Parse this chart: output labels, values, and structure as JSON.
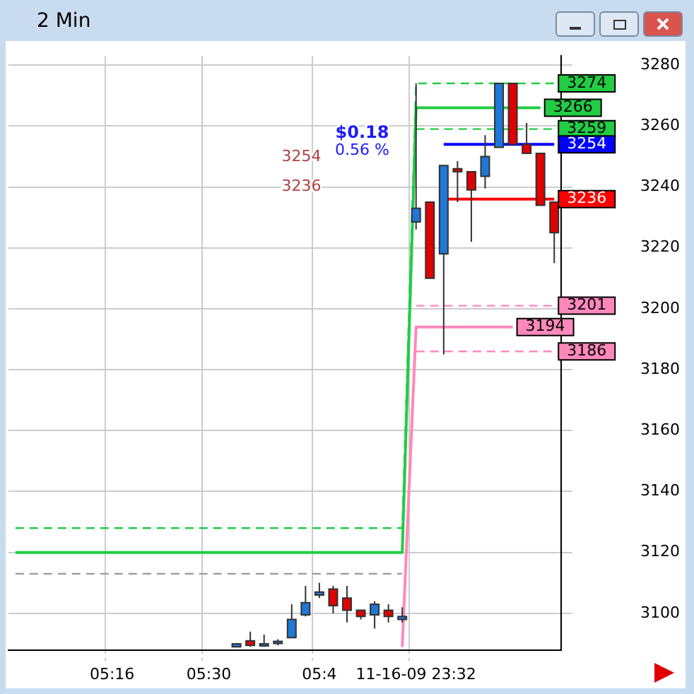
{
  "chart_data": {
    "type": "candlestick",
    "title": "2 Min",
    "categories": [
      null,
      null,
      null,
      null,
      null,
      null,
      null,
      "05:16",
      null,
      null,
      null,
      null,
      null,
      null,
      "05:30",
      null,
      null,
      null,
      null,
      null,
      null,
      null,
      "05:4",
      null,
      null,
      null,
      null,
      null,
      null,
      "11-16-09 23:32",
      null,
      null,
      null,
      null,
      null,
      null,
      null,
      null,
      null,
      null
    ],
    "ohlc": [
      null,
      null,
      null,
      null,
      null,
      null,
      null,
      null,
      null,
      null,
      null,
      null,
      null,
      null,
      null,
      null,
      [
        3089,
        3090,
        3089,
        3090
      ],
      [
        3091,
        3094,
        3089,
        3089.5
      ],
      [
        3089.5,
        3093,
        3089,
        3090
      ],
      [
        3090.3,
        3091.5,
        3089.5,
        3090.8
      ],
      [
        3092,
        3103,
        3092,
        3098
      ],
      [
        3099.5,
        3109,
        3099,
        3103.5
      ],
      [
        3106,
        3110,
        3105,
        3107
      ],
      [
        3108,
        3109,
        3100,
        3102.5
      ],
      [
        3105,
        3109,
        3097,
        3101
      ],
      [
        3101,
        3101,
        3098,
        3099
      ],
      [
        3099.5,
        3104,
        3095,
        3103
      ],
      [
        3101,
        3103,
        3097,
        3099
      ],
      [
        3098,
        3102,
        3097,
        3099
      ],
      [
        3228.5,
        3274,
        3226,
        3233
      ],
      [
        3235,
        3235,
        3210,
        3210
      ],
      [
        3218,
        3247,
        3185,
        3247
      ],
      [
        3246,
        3248.5,
        3235,
        3245
      ],
      [
        3245,
        3245,
        3222,
        3239
      ],
      [
        3243.5,
        3257,
        3239.5,
        3250
      ],
      [
        3253,
        3274,
        3253,
        3274
      ],
      [
        3274,
        3274,
        3254,
        3254
      ],
      [
        3254,
        3261,
        3251,
        3251
      ],
      [
        3251,
        3251,
        3234,
        3234
      ],
      [
        3235,
        3235,
        3215,
        3225
      ]
    ],
    "colors": [
      null,
      null,
      null,
      null,
      null,
      null,
      null,
      null,
      null,
      null,
      null,
      null,
      null,
      null,
      null,
      null,
      "#1e78d7",
      "#e00000",
      "#1e78d7",
      "#1e78d7",
      "#1e78d7",
      "#1e78d7",
      "#1e78d7",
      "#e00000",
      "#e00000",
      "#e00000",
      "#1e78d7",
      "#e00000",
      "#1e78d7",
      "#1e78d7",
      "#e00000",
      "#1e78d7",
      "#e00000",
      "#e00000",
      "#1e78d7",
      "#1e78d7",
      "#e00000",
      "#e00000",
      "#e00000",
      "#e00000"
    ],
    "series": [
      {
        "type": "line",
        "color": "#22cc44",
        "line_style": "dashed",
        "values": [
          3128,
          3128,
          3128,
          3128,
          3128,
          3128,
          3128,
          3128,
          3128,
          3128,
          3128,
          3128,
          3128,
          3128,
          3128,
          3128,
          3128,
          3128,
          3128,
          3128,
          3128,
          3128,
          3128,
          3128,
          3128,
          3128,
          3128,
          3128,
          3128,
          3274,
          3274,
          3274,
          3274,
          3274,
          3274,
          3274,
          3274,
          3274,
          3274,
          3274
        ],
        "value_labels": [
          null,
          null,
          null,
          null,
          null,
          null,
          null,
          null,
          null,
          null,
          null,
          null,
          null,
          null,
          null,
          null,
          null,
          null,
          null,
          null,
          null,
          null,
          null,
          null,
          null,
          null,
          null,
          null,
          null,
          null,
          null,
          null,
          null,
          null,
          null,
          null,
          null,
          null,
          null,
          "3274"
        ]
      },
      {
        "type": "line",
        "color": "#22cc44",
        "line_style": "solid",
        "values": [
          3120,
          3120,
          3120,
          3120,
          3120,
          3120,
          3120,
          3120,
          3120,
          3120,
          3120,
          3120,
          3120,
          3120,
          3120,
          3120,
          3120,
          3120,
          3120,
          3120,
          3120,
          3120,
          3120,
          3120,
          3120,
          3120,
          3120,
          3120,
          3120,
          3266,
          3266,
          3266,
          3266,
          3266,
          3266,
          3266,
          3266,
          3266,
          3266,
          null
        ],
        "value_labels": [
          null,
          null,
          null,
          null,
          null,
          null,
          null,
          null,
          null,
          null,
          null,
          null,
          null,
          null,
          null,
          null,
          null,
          null,
          null,
          null,
          null,
          null,
          null,
          null,
          null,
          null,
          null,
          null,
          null,
          null,
          null,
          null,
          null,
          null,
          null,
          null,
          null,
          null,
          "3266",
          null
        ]
      },
      {
        "type": "line",
        "color": "#22cc44",
        "line_style": "dashed",
        "values": [
          null,
          null,
          null,
          null,
          null,
          null,
          null,
          null,
          null,
          null,
          null,
          null,
          null,
          null,
          null,
          null,
          null,
          null,
          null,
          null,
          null,
          null,
          null,
          null,
          null,
          null,
          null,
          null,
          null,
          3259,
          3259,
          3259,
          3259,
          3259,
          3259,
          3259,
          3259,
          3259,
          3259,
          3259
        ],
        "value_labels": [
          null,
          null,
          null,
          null,
          null,
          null,
          null,
          null,
          null,
          null,
          null,
          null,
          null,
          null,
          null,
          null,
          null,
          null,
          null,
          null,
          null,
          null,
          null,
          null,
          null,
          null,
          null,
          null,
          null,
          null,
          null,
          null,
          null,
          null,
          null,
          null,
          null,
          null,
          null,
          "3259"
        ]
      },
      {
        "type": "line",
        "color": "#999999",
        "line_style": "dashed",
        "values": [
          3113,
          3113,
          3113,
          3113,
          3113,
          3113,
          3113,
          3113,
          3113,
          3113,
          3113,
          3113,
          3113,
          3113,
          3113,
          3113,
          3113,
          3113,
          3113,
          3113,
          3113,
          3113,
          3113,
          3113,
          3113,
          3113,
          3113,
          3113,
          3113,
          null,
          null,
          null,
          null,
          null,
          null,
          null,
          null,
          null,
          null,
          null
        ]
      },
      {
        "type": "line",
        "color": "#0000ff",
        "line_style": "solid",
        "values": [
          null,
          null,
          null,
          null,
          null,
          null,
          null,
          null,
          null,
          null,
          null,
          null,
          null,
          null,
          null,
          null,
          null,
          null,
          null,
          null,
          null,
          null,
          null,
          null,
          null,
          null,
          null,
          null,
          null,
          null,
          null,
          3254,
          3254,
          3254,
          3254,
          3254,
          3254,
          3254,
          3254,
          3254
        ],
        "value_labels": [
          null,
          null,
          null,
          null,
          null,
          null,
          null,
          null,
          null,
          null,
          null,
          null,
          null,
          null,
          null,
          null,
          null,
          null,
          null,
          null,
          null,
          null,
          null,
          null,
          null,
          null,
          null,
          null,
          null,
          null,
          null,
          null,
          null,
          null,
          null,
          null,
          null,
          null,
          null,
          "3254"
        ]
      },
      {
        "type": "line",
        "color": "#ff0000",
        "line_style": "solid",
        "values": [
          null,
          null,
          null,
          null,
          null,
          null,
          null,
          null,
          null,
          null,
          null,
          null,
          null,
          null,
          null,
          null,
          null,
          null,
          null,
          null,
          null,
          null,
          null,
          null,
          null,
          null,
          null,
          null,
          null,
          null,
          null,
          3236,
          3236,
          3236,
          3236,
          3236,
          3236,
          3236,
          3236,
          3236
        ],
        "value_labels": [
          null,
          null,
          null,
          null,
          null,
          null,
          null,
          null,
          null,
          null,
          null,
          null,
          null,
          null,
          null,
          null,
          null,
          null,
          null,
          null,
          null,
          null,
          null,
          null,
          null,
          null,
          null,
          null,
          null,
          null,
          null,
          null,
          null,
          null,
          null,
          null,
          null,
          null,
          null,
          "3236"
        ]
      },
      {
        "type": "line",
        "color": "#ff88bb",
        "line_style": "dashed",
        "values": [
          null,
          null,
          null,
          null,
          null,
          null,
          null,
          null,
          null,
          null,
          null,
          null,
          null,
          null,
          null,
          null,
          null,
          null,
          null,
          null,
          null,
          null,
          null,
          null,
          null,
          null,
          null,
          null,
          null,
          3201,
          3201,
          3201,
          3201,
          3201,
          3201,
          3201,
          3201,
          3201,
          3201,
          3201
        ],
        "value_labels": [
          null,
          null,
          null,
          null,
          null,
          null,
          null,
          null,
          null,
          null,
          null,
          null,
          null,
          null,
          null,
          null,
          null,
          null,
          null,
          null,
          null,
          null,
          null,
          null,
          null,
          null,
          null,
          null,
          null,
          null,
          null,
          null,
          null,
          null,
          null,
          null,
          null,
          null,
          null,
          "3201"
        ]
      },
      {
        "type": "line",
        "color": "#ff88bb",
        "line_style": "solid",
        "values": [
          null,
          null,
          null,
          null,
          null,
          null,
          null,
          null,
          null,
          null,
          null,
          null,
          null,
          null,
          null,
          null,
          null,
          null,
          null,
          null,
          null,
          null,
          null,
          null,
          null,
          null,
          null,
          null,
          3089,
          3194,
          3194,
          3194,
          3194,
          3194,
          3194,
          3194,
          3194,
          null,
          null,
          null
        ],
        "value_labels": [
          null,
          null,
          null,
          null,
          null,
          null,
          null,
          null,
          null,
          null,
          null,
          null,
          null,
          null,
          null,
          null,
          null,
          null,
          null,
          null,
          null,
          null,
          null,
          null,
          null,
          null,
          null,
          null,
          null,
          null,
          null,
          null,
          null,
          null,
          null,
          null,
          "3194",
          null,
          null,
          null
        ]
      },
      {
        "type": "line",
        "color": "#ff88bb",
        "line_style": "dashed",
        "values": [
          null,
          null,
          null,
          null,
          null,
          null,
          null,
          null,
          null,
          null,
          null,
          null,
          null,
          null,
          null,
          null,
          null,
          null,
          null,
          null,
          null,
          null,
          null,
          null,
          null,
          null,
          null,
          null,
          null,
          3186,
          3186,
          3186,
          3186,
          3186,
          3186,
          3186,
          3186,
          3186,
          3186,
          3186
        ],
        "value_labels": [
          null,
          null,
          null,
          null,
          null,
          null,
          null,
          null,
          null,
          null,
          null,
          null,
          null,
          null,
          null,
          null,
          null,
          null,
          null,
          null,
          null,
          null,
          null,
          null,
          null,
          null,
          null,
          null,
          null,
          null,
          null,
          null,
          null,
          null,
          null,
          null,
          null,
          null,
          null,
          "3186"
        ]
      }
    ],
    "annotations": [
      "$0.18",
      "0.56 %",
      "3254",
      "3236"
    ],
    "ylim": [
      3088,
      3283
    ],
    "yticks": [
      3100,
      3120,
      3140,
      3160,
      3180,
      3200,
      3220,
      3240,
      3260,
      3280
    ],
    "grid": true,
    "legend": false,
    "marker": "none"
  }
}
